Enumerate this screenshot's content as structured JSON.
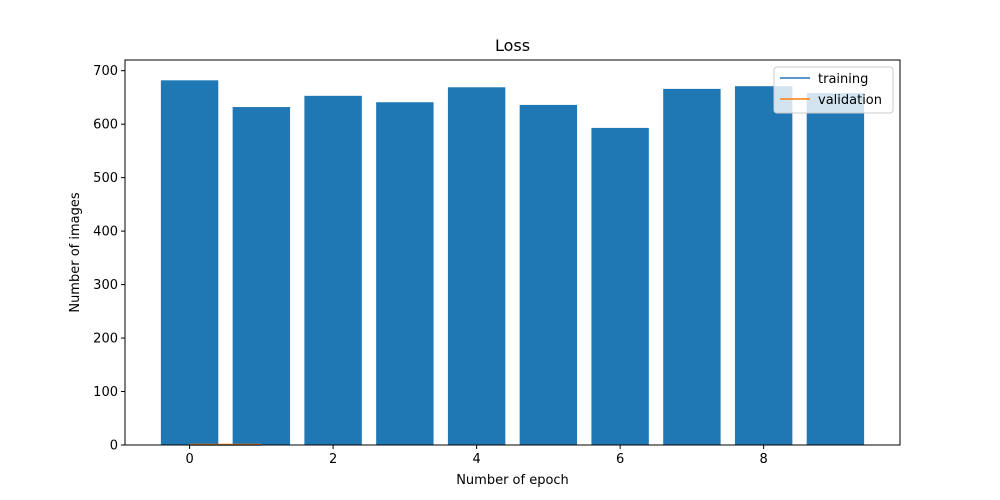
{
  "chart_data": {
    "type": "bar",
    "title": "Loss",
    "xlabel": "Number of epoch",
    "ylabel": "Number of images",
    "categories": [
      0,
      1,
      2,
      3,
      4,
      5,
      6,
      7,
      8,
      9
    ],
    "xlim": [
      -0.9,
      9.9
    ],
    "ylim": [
      0,
      720
    ],
    "xticks": [
      0,
      2,
      4,
      6,
      8
    ],
    "yticks": [
      0,
      100,
      200,
      300,
      400,
      500,
      600,
      700
    ],
    "bar_color": "#1f77b4",
    "bars": [
      682,
      632,
      653,
      641,
      669,
      636,
      593,
      666,
      671,
      658
    ],
    "series": [
      {
        "name": "training",
        "color": "#1f77b4",
        "x": [
          0,
          1
        ],
        "values": [
          0,
          0
        ]
      },
      {
        "name": "validation",
        "color": "#ff7f0e",
        "x": [
          0,
          1
        ],
        "values": [
          1,
          1
        ]
      }
    ],
    "legend": "top-right",
    "grid": false
  }
}
